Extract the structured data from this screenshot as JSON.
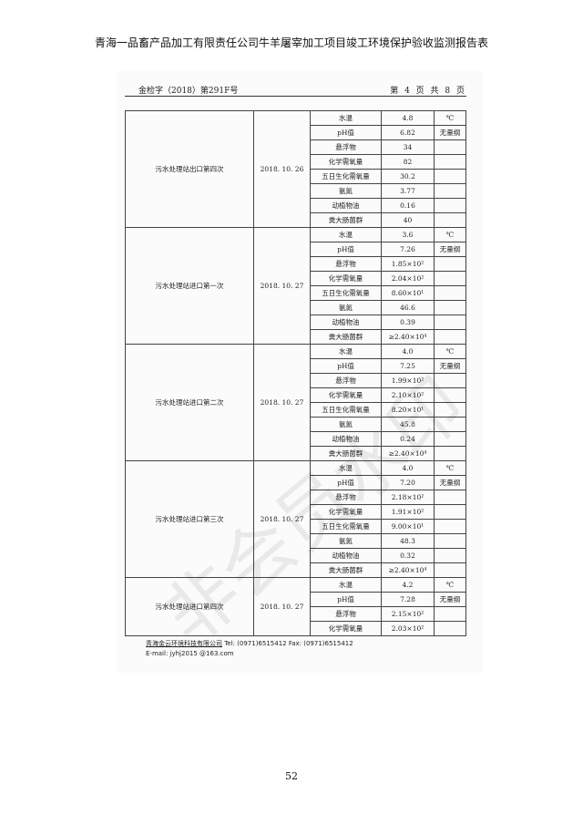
{
  "doc_title": "青海一品畜产品加工有限责任公司牛羊屠宰加工项目竣工环境保护验收监测报告表",
  "header": {
    "report_no": "金检字（2018）第291F号",
    "page_info": "第 4 页 共 8 页"
  },
  "groups": [
    {
      "name": "污水处理站出口第四次",
      "date": "2018. 10. 26",
      "rows": [
        {
          "item": "水温",
          "value": "4.8",
          "unit": "℃"
        },
        {
          "item": "pH值",
          "value": "6.82",
          "unit": "无量纲"
        },
        {
          "item": "悬浮物",
          "value": "34",
          "unit": ""
        },
        {
          "item": "化学需氧量",
          "value": "82",
          "unit": ""
        },
        {
          "item": "五日生化需氧量",
          "value": "30.2",
          "unit": ""
        },
        {
          "item": "氨氮",
          "value": "3.77",
          "unit": ""
        },
        {
          "item": "动植物油",
          "value": "0.16",
          "unit": ""
        },
        {
          "item": "粪大肠菌群",
          "value": "40",
          "unit": ""
        }
      ]
    },
    {
      "name": "污水处理站进口第一次",
      "date": "2018. 10. 27",
      "rows": [
        {
          "item": "水温",
          "value": "3.6",
          "unit": "℃"
        },
        {
          "item": "pH值",
          "value": "7.26",
          "unit": "无量纲"
        },
        {
          "item": "悬浮物",
          "value": "1.85×10²",
          "unit": ""
        },
        {
          "item": "化学需氧量",
          "value": "2.04×10²",
          "unit": ""
        },
        {
          "item": "五日生化需氧量",
          "value": "8.60×10¹",
          "unit": ""
        },
        {
          "item": "氨氮",
          "value": "46.6",
          "unit": ""
        },
        {
          "item": "动植物油",
          "value": "0.39",
          "unit": ""
        },
        {
          "item": "粪大肠菌群",
          "value": "≥2.40×10⁴",
          "unit": ""
        }
      ]
    },
    {
      "name": "污水处理站进口第二次",
      "date": "2018. 10. 27",
      "rows": [
        {
          "item": "水温",
          "value": "4.0",
          "unit": "℃"
        },
        {
          "item": "pH值",
          "value": "7.25",
          "unit": "无量纲"
        },
        {
          "item": "悬浮物",
          "value": "1.99×10²",
          "unit": ""
        },
        {
          "item": "化学需氧量",
          "value": "2.10×10²",
          "unit": ""
        },
        {
          "item": "五日生化需氧量",
          "value": "8.20×10¹",
          "unit": ""
        },
        {
          "item": "氨氮",
          "value": "45.8",
          "unit": ""
        },
        {
          "item": "动植物油",
          "value": "0.24",
          "unit": ""
        },
        {
          "item": "粪大肠菌群",
          "value": "≥2.40×10⁴",
          "unit": ""
        }
      ]
    },
    {
      "name": "污水处理站进口第三次",
      "date": "2018. 10. 27",
      "rows": [
        {
          "item": "水温",
          "value": "4.0",
          "unit": "℃"
        },
        {
          "item": "pH值",
          "value": "7.20",
          "unit": "无量纲"
        },
        {
          "item": "悬浮物",
          "value": "2.18×10²",
          "unit": ""
        },
        {
          "item": "化学需氧量",
          "value": "1.91×10²",
          "unit": ""
        },
        {
          "item": "五日生化需氧量",
          "value": "9.00×10¹",
          "unit": ""
        },
        {
          "item": "氨氮",
          "value": "48.3",
          "unit": ""
        },
        {
          "item": "动植物油",
          "value": "0.32",
          "unit": ""
        },
        {
          "item": "粪大肠菌群",
          "value": "≥2.40×10⁴",
          "unit": ""
        }
      ]
    },
    {
      "name": "污水处理站进口第四次",
      "date": "2018. 10. 27",
      "rows": [
        {
          "item": "水温",
          "value": "4.2",
          "unit": "℃"
        },
        {
          "item": "pH值",
          "value": "7.28",
          "unit": "无量纲"
        },
        {
          "item": "悬浮物",
          "value": "2.15×10²",
          "unit": ""
        },
        {
          "item": "化学需氧量",
          "value": "2.03×10²",
          "unit": ""
        }
      ]
    }
  ],
  "footer": {
    "company": "青海金云环境科技有限公司",
    "contact": " Tel:  (0971)6515412    Fax:  (0971)6515412",
    "email": "E-mail:  jyhj2015 @163.com"
  },
  "watermark": "非会员水印",
  "page_number": "52"
}
